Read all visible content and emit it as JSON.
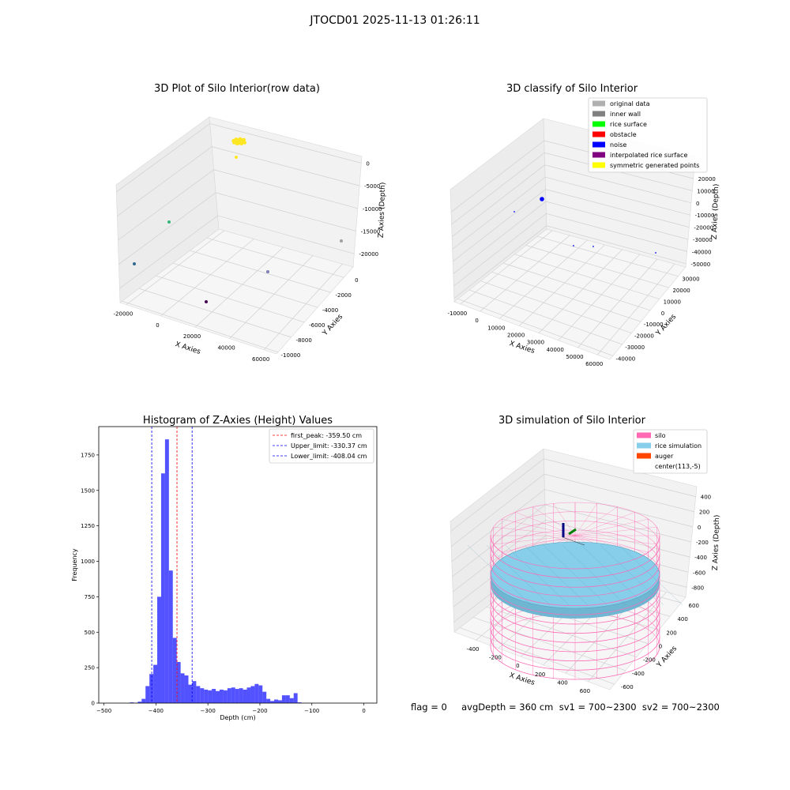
{
  "figure": {
    "suptitle": "JTOCD01 2025-11-13 01:26:11",
    "flag_line": "flag = 0     avgDepth = 360 cm  sv1 = 700~2300  sv2 = 700~2300"
  },
  "chart_data": [
    {
      "type": "scatter",
      "projection": "3d",
      "title": "3D Plot of Silo Interior(row data)",
      "xlabel": "X Axies",
      "ylabel": "Y Axies",
      "zlabel": "Z Axies (Depth)",
      "xticks": [
        "-20000",
        "0",
        "20000",
        "40000",
        "60000"
      ],
      "yticks": [
        "0",
        "-2000",
        "-4000",
        "-6000",
        "-8000",
        "-10000"
      ],
      "zticks": [
        "0",
        "-5000",
        "-10000",
        "-15000",
        "-20000"
      ],
      "points": [
        {
          "x": 8000,
          "y": -600,
          "z": 0,
          "color": "#fde725",
          "note": "dense cluster"
        },
        {
          "x": 7000,
          "y": -700,
          "z": -1500,
          "color": "#fde725"
        },
        {
          "x": -15000,
          "y": -3000,
          "z": -20000,
          "color": "#35b779"
        },
        {
          "x": -22000,
          "y": -6000,
          "z": -21000,
          "color": "#31688e"
        },
        {
          "x": 5000,
          "y": -10000,
          "z": -22000,
          "color": "#440154"
        },
        {
          "x": 40000,
          "y": -5000,
          "z": -21000,
          "color": "#8080b0"
        },
        {
          "x": 62000,
          "y": -1500,
          "z": -20000,
          "color": "#a0a0a0"
        }
      ]
    },
    {
      "type": "scatter",
      "projection": "3d",
      "title": "3D classify of Silo Interior",
      "xlabel": "X Axies",
      "ylabel": "Y Axies",
      "zlabel": "Z Axies (Depth)",
      "xticks": [
        "-10000",
        "0",
        "10000",
        "20000",
        "30000",
        "40000",
        "50000",
        "60000"
      ],
      "yticks": [
        "30000",
        "20000",
        "10000",
        "0",
        "-10000",
        "-20000",
        "-30000",
        "-40000"
      ],
      "zticks": [
        "20000",
        "10000",
        "0",
        "-10000",
        "-20000",
        "-30000",
        "-40000",
        "-50000"
      ],
      "legend_position": "top-right",
      "legend": [
        {
          "label": "original data",
          "color": "#b0b0b0"
        },
        {
          "label": "inner wall",
          "color": "#808080"
        },
        {
          "label": "rice surface",
          "color": "#00ff00"
        },
        {
          "label": "obstacle",
          "color": "#ff0000"
        },
        {
          "label": "noise",
          "color": "#0000ff"
        },
        {
          "label": "interpolated rice surface",
          "color": "#800080"
        },
        {
          "label": "symmetric generated points",
          "color": "#ffff00"
        }
      ],
      "points": [
        {
          "x": 500,
          "y": 0,
          "z": 0,
          "color": "#0000ff",
          "note": "noise cluster"
        },
        {
          "x": -10000,
          "y": 0,
          "z": -20000,
          "color": "#0000ff"
        },
        {
          "x": 20000,
          "y": -10000,
          "z": -40000,
          "color": "#0000ff"
        },
        {
          "x": 30000,
          "y": -20000,
          "z": -40000,
          "color": "#0000ff"
        },
        {
          "x": 60000,
          "y": -20000,
          "z": -45000,
          "color": "#0000ff"
        }
      ]
    },
    {
      "type": "bar",
      "subtype": "histogram",
      "title": "Histogram of Z-Axies (Height) Values",
      "xlabel": "Depth (cm)",
      "ylabel": "Frequency",
      "xlim": [
        -510,
        25
      ],
      "ylim": [
        0,
        1950
      ],
      "xticks": [
        -500,
        -400,
        -300,
        -200,
        -100,
        0
      ],
      "yticks": [
        0,
        250,
        500,
        750,
        1000,
        1250,
        1500,
        1750
      ],
      "bar_color": "#0000ff",
      "bin_start": -450,
      "bin_width": 7.5,
      "counts": [
        5,
        2,
        10,
        30,
        120,
        205,
        270,
        750,
        1620,
        1860,
        935,
        460,
        290,
        210,
        195,
        130,
        155,
        120,
        105,
        95,
        90,
        100,
        85,
        95,
        90,
        105,
        110,
        100,
        105,
        95,
        110,
        120,
        135,
        125,
        80,
        30,
        15,
        25,
        20,
        55,
        55,
        35,
        70,
        5
      ],
      "vlines": [
        {
          "label": "first_peak: -359.50 cm",
          "x": -359.5,
          "color": "#ff0000"
        },
        {
          "label": "Upper_limit: -330.37 cm",
          "x": -330.37,
          "color": "#0000ff"
        },
        {
          "label": "Lower_limit: -408.04 cm",
          "x": -408.04,
          "color": "#0000ff"
        }
      ],
      "legend_position": "top-right"
    },
    {
      "type": "scatter",
      "projection": "3d",
      "title": "3D simulation of Silo Interior",
      "xlabel": "X Axies",
      "ylabel": "Y Axies",
      "zlabel": "Z Axies (Depth)",
      "xticks": [
        "-400",
        "-200",
        "0",
        "200",
        "400",
        "600"
      ],
      "yticks": [
        "600",
        "400",
        "200",
        "0",
        "-200",
        "-400",
        "-600"
      ],
      "zticks": [
        "400",
        "200",
        "0",
        "-200",
        "-400",
        "-600",
        "-800"
      ],
      "legend_position": "top-right",
      "legend": [
        {
          "label": "silo",
          "color": "#ff69b4"
        },
        {
          "label": "rice simulation",
          "color": "#87ceeb"
        },
        {
          "label": "auger",
          "color": "#ff4500"
        },
        {
          "label": "center(113,-5)",
          "color": ""
        }
      ]
    }
  ]
}
